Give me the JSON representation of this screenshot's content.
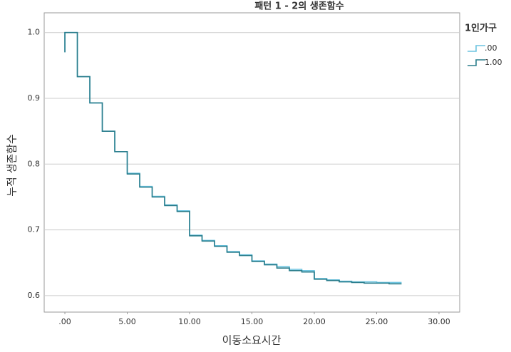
{
  "chart_data": {
    "type": "line",
    "step": "post",
    "title": "패턴 1 - 2의 생존함수",
    "x_label": "이동소요시간",
    "y_label": "누적 생존함수",
    "legend_title": "1인가구",
    "legend_position": "right",
    "grid": true,
    "xlim": [
      -1.66,
      31.66
    ],
    "ylim": [
      0.575,
      1.03
    ],
    "xticks": [
      {
        "value": 0,
        "label": ".00"
      },
      {
        "value": 5,
        "label": "5.00"
      },
      {
        "value": 10,
        "label": "10.00"
      },
      {
        "value": 15,
        "label": "15.00"
      },
      {
        "value": 20,
        "label": "20.00"
      },
      {
        "value": 25,
        "label": "25.00"
      },
      {
        "value": 30,
        "label": "30.00"
      }
    ],
    "yticks": [
      0.6,
      0.7,
      0.8,
      0.9,
      {
        "value": 1.0,
        "label": "1.0"
      }
    ],
    "x": [
      0,
      0,
      1,
      2,
      3,
      4,
      5,
      6,
      7,
      8,
      9,
      10,
      11,
      12,
      13,
      14,
      15,
      16,
      17,
      18,
      19,
      20,
      21,
      22,
      23,
      24,
      25,
      26,
      27
    ],
    "series": [
      {
        "name": ".00",
        "color": "#6cc4e0",
        "values": [
          0.97,
          1.0,
          0.933,
          0.893,
          0.85,
          0.819,
          0.786,
          0.766,
          0.751,
          0.738,
          0.729,
          0.692,
          0.684,
          0.676,
          0.667,
          0.662,
          0.653,
          0.648,
          0.644,
          0.64,
          0.638,
          0.626,
          0.624,
          0.622,
          0.621,
          0.621,
          0.62,
          0.62,
          0.62
        ]
      },
      {
        "name": "1.00",
        "color": "#2a7d8c",
        "values": [
          0.97,
          1.0,
          0.933,
          0.893,
          0.85,
          0.819,
          0.785,
          0.765,
          0.75,
          0.737,
          0.728,
          0.691,
          0.683,
          0.675,
          0.666,
          0.661,
          0.652,
          0.647,
          0.642,
          0.638,
          0.636,
          0.625,
          0.623,
          0.621,
          0.62,
          0.619,
          0.619,
          0.618,
          0.618
        ]
      }
    ]
  }
}
